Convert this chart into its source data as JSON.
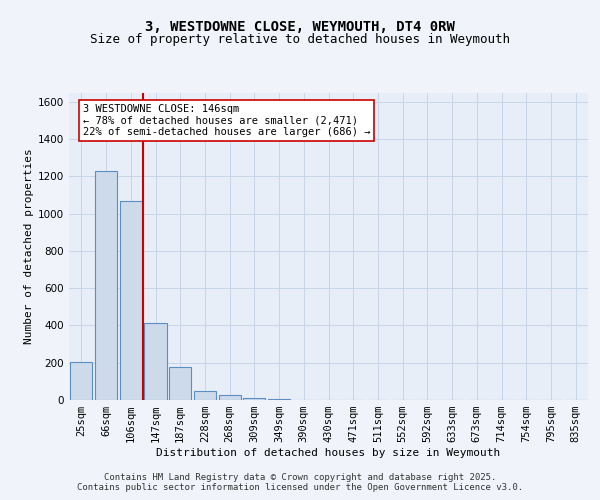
{
  "title": "3, WESTDOWNE CLOSE, WEYMOUTH, DT4 0RW",
  "subtitle": "Size of property relative to detached houses in Weymouth",
  "xlabel": "Distribution of detached houses by size in Weymouth",
  "ylabel": "Number of detached properties",
  "bar_labels": [
    "25sqm",
    "66sqm",
    "106sqm",
    "147sqm",
    "187sqm",
    "228sqm",
    "268sqm",
    "309sqm",
    "349sqm",
    "390sqm",
    "430sqm",
    "471sqm",
    "511sqm",
    "552sqm",
    "592sqm",
    "633sqm",
    "673sqm",
    "714sqm",
    "754sqm",
    "795sqm",
    "835sqm"
  ],
  "bar_values": [
    205,
    1230,
    1070,
    415,
    175,
    50,
    25,
    10,
    5,
    0,
    0,
    0,
    0,
    0,
    0,
    0,
    0,
    0,
    0,
    0,
    0
  ],
  "bar_color": "#cddaea",
  "bar_edge_color": "#5b8ec4",
  "ylim": [
    0,
    1650
  ],
  "yticks": [
    0,
    200,
    400,
    600,
    800,
    1000,
    1200,
    1400,
    1600
  ],
  "vline_x_index": 2,
  "vline_color": "#cc0000",
  "annotation_text": "3 WESTDOWNE CLOSE: 146sqm\n← 78% of detached houses are smaller (2,471)\n22% of semi-detached houses are larger (686) →",
  "annotation_box_facecolor": "#ffffff",
  "annotation_box_edgecolor": "#cc0000",
  "grid_color": "#c8d4e8",
  "plot_bg_color": "#e8eef8",
  "fig_bg_color": "#f0f4fa",
  "title_fontsize": 10,
  "subtitle_fontsize": 9,
  "axis_label_fontsize": 8,
  "tick_fontsize": 7.5,
  "annotation_fontsize": 7.5,
  "footer_fontsize": 6.5,
  "footer_text": "Contains HM Land Registry data © Crown copyright and database right 2025.\nContains public sector information licensed under the Open Government Licence v3.0."
}
